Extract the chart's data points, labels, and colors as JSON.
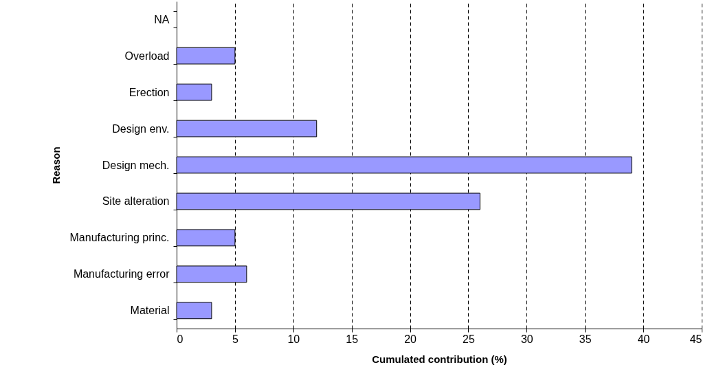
{
  "chart_data": {
    "type": "bar",
    "orientation": "horizontal",
    "xlabel": "Cumulated contribution (%)",
    "ylabel": "Reason",
    "categories": [
      "NA",
      "Overload",
      "Erection",
      "Design env.",
      "Design mech.",
      "Site alteration",
      "Manufacturing princ.",
      "Manufacturing error",
      "Material"
    ],
    "values": [
      null,
      5,
      3,
      12,
      39,
      26,
      5,
      6,
      3
    ],
    "color": "#9999ff",
    "xlim": [
      0,
      45
    ],
    "xticks": [
      0,
      5,
      10,
      15,
      20,
      25,
      30,
      35,
      40,
      45
    ],
    "grid": "x"
  }
}
